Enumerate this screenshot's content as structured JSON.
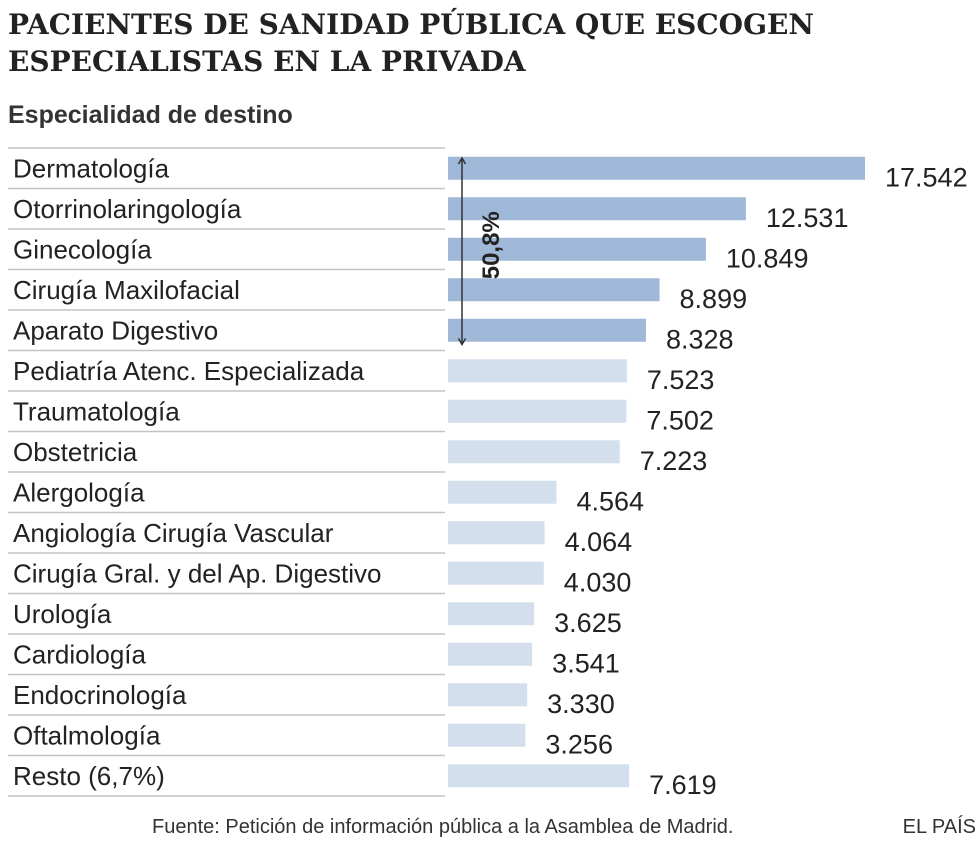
{
  "title": "PACIENTES DE SANIDAD PÚBLICA QUE ESCOGEN ESPECIALISTAS EN LA PRIVADA",
  "source": "Fuente: Petición de información pública a la Asamblea de Madrid.",
  "brand": "EL PAÍS",
  "colors": {
    "highlight": "#9fb8d7",
    "regular": "#d3dfed",
    "rule": "#c4c4c4"
  },
  "chart_data": {
    "type": "bar",
    "orientation": "horizontal",
    "subtitle": "Especialidad de destino",
    "categories": [
      "Dermatología",
      "Otorrinolaringología",
      "Ginecología",
      "Cirugía Maxilofacial",
      "Aparato Digestivo",
      "Pediatría Atenc. Especializada",
      "Traumatología",
      "Obstetricia",
      "Alergología",
      "Angiología Cirugía Vascular",
      "Cirugía Gral. y del Ap. Digestivo",
      "Urología",
      "Cardiología",
      "Endocrinología",
      "Oftalmología",
      "Resto (6,7%)"
    ],
    "values": [
      17542,
      12531,
      10849,
      8899,
      8328,
      7523,
      7502,
      7223,
      4564,
      4064,
      4030,
      3625,
      3541,
      3330,
      3256,
      7619
    ],
    "value_labels": [
      "17.542",
      "12.531",
      "10.849",
      "8.899",
      "8.328",
      "7.523",
      "7.502",
      "7.223",
      "4.564",
      "4.064",
      "4.030",
      "3.625",
      "3.541",
      "3.330",
      "3.256",
      "7.619"
    ],
    "highlighted_count": 5,
    "annotation": "50,8%",
    "xlim": [
      0,
      17542
    ],
    "grid": false,
    "legend": "none"
  }
}
